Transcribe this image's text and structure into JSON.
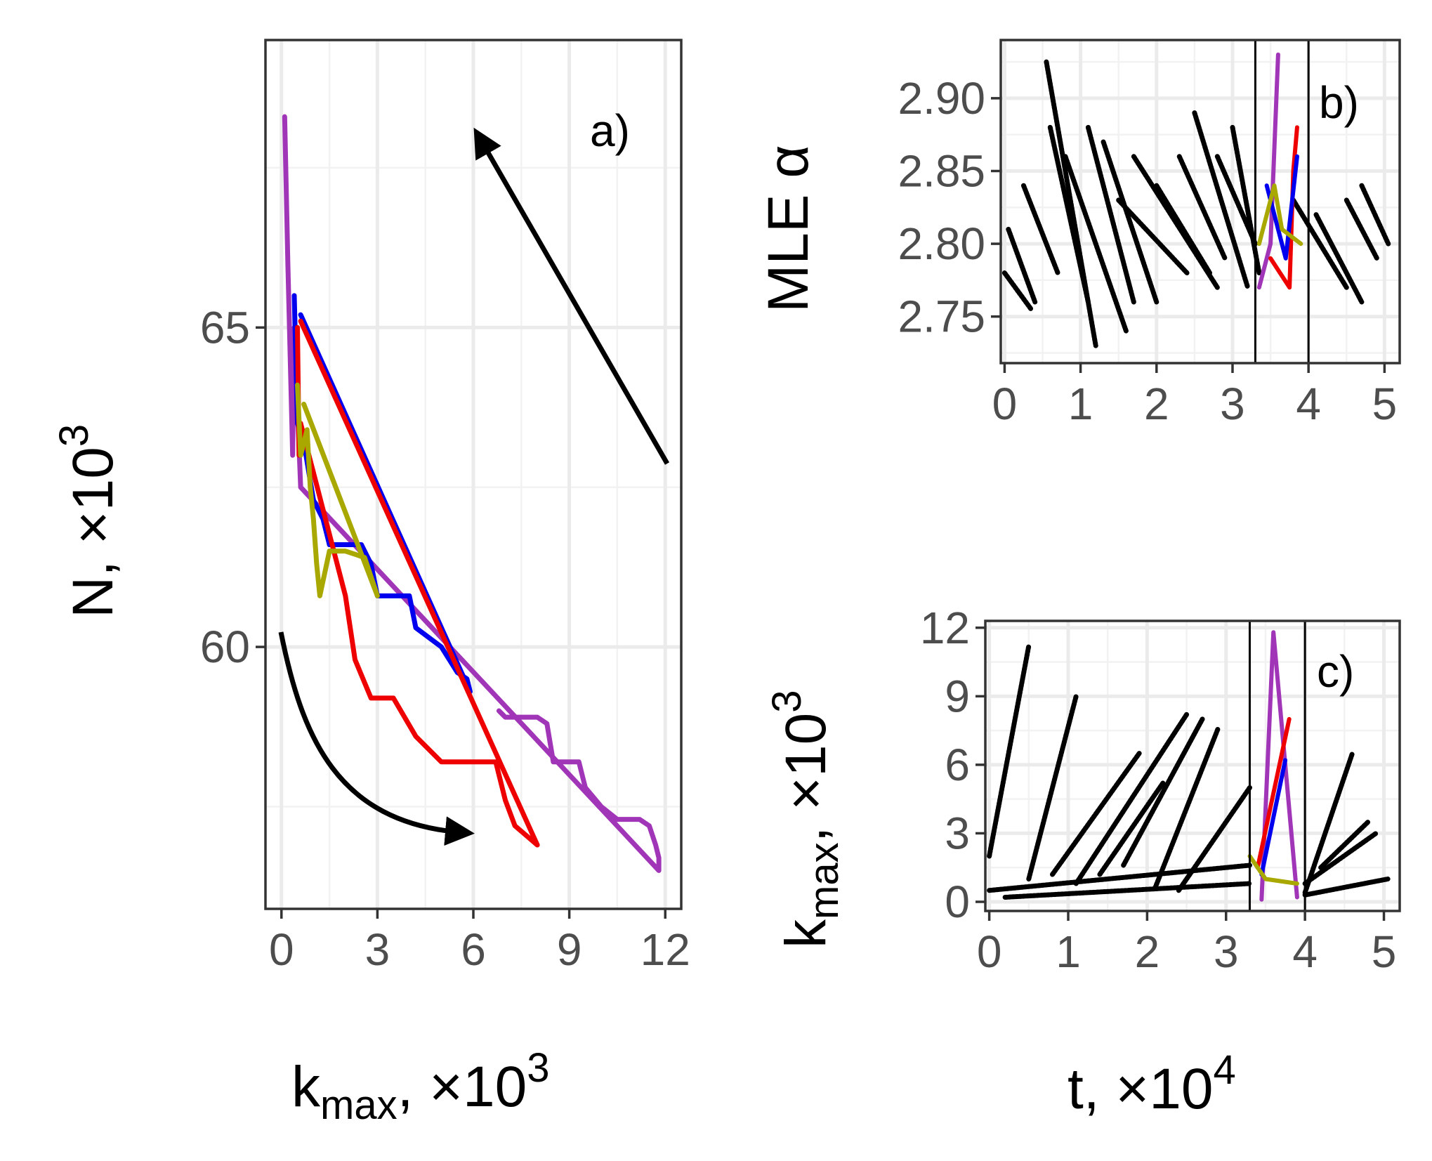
{
  "chart_data": [
    {
      "panel": "a)",
      "type": "line",
      "xlabel_main": "k",
      "xlabel_sub": "max",
      "xlabel_suffix": ", ×10",
      "xlabel_exp": "3",
      "ylabel_main": "N, ×10",
      "ylabel_exp": "3",
      "xlim": [
        -0.5,
        12.5
      ],
      "ylim": [
        55.9,
        69.5
      ],
      "xticks": [
        0,
        3,
        6,
        9,
        12
      ],
      "yticks": [
        60,
        65
      ],
      "series": [
        {
          "name": "purple",
          "color": "#a135b7",
          "x": [
            0.1,
            0.2,
            0.3,
            0.35,
            0.4,
            0.6,
            11.8,
            11.8,
            11.7,
            11.5,
            11.2,
            10.5,
            10.0,
            9.5,
            9.3,
            8.5,
            8.3,
            8.0,
            7.5,
            7.0,
            6.8
          ],
          "y": [
            68.3,
            66.0,
            64.0,
            63.0,
            65.0,
            62.5,
            56.5,
            56.7,
            56.9,
            57.2,
            57.3,
            57.3,
            57.5,
            57.8,
            58.2,
            58.2,
            58.8,
            58.9,
            58.9,
            58.9,
            59.0
          ]
        },
        {
          "name": "blue",
          "color": "#0000ee",
          "x": [
            0.4,
            0.5,
            0.7,
            1.0,
            1.3,
            1.5,
            1.8,
            2.5,
            2.8,
            3.0,
            4.0,
            4.2,
            5.0,
            5.5,
            5.8,
            5.9,
            0.6
          ],
          "y": [
            65.5,
            63.5,
            63.2,
            62.3,
            62.0,
            61.6,
            61.6,
            61.6,
            61.3,
            60.8,
            60.8,
            60.3,
            60.0,
            59.6,
            59.5,
            59.3,
            65.2
          ]
        },
        {
          "name": "red",
          "color": "#ee0000",
          "x": [
            0.5,
            0.55,
            0.6,
            2.0,
            2.3,
            2.8,
            3.5,
            4.2,
            5.0,
            6.7,
            7.0,
            7.3,
            8.0,
            0.6
          ],
          "y": [
            65.0,
            63.0,
            63.5,
            60.8,
            59.8,
            59.2,
            59.2,
            58.6,
            58.2,
            58.2,
            57.6,
            57.2,
            56.9,
            65.1
          ]
        },
        {
          "name": "olive",
          "color": "#a8a800",
          "x": [
            0.5,
            0.6,
            0.8,
            0.9,
            1.0,
            1.1,
            1.2,
            1.5,
            2.0,
            2.6,
            3.0,
            0.7
          ],
          "y": [
            64.1,
            63.0,
            63.4,
            62.5,
            62.0,
            61.3,
            60.8,
            61.5,
            61.5,
            61.4,
            60.8,
            63.8
          ]
        }
      ],
      "annotations": [
        "arrow-up-left",
        "arrow-curved-right"
      ]
    },
    {
      "panel": "b)",
      "type": "scatter",
      "ylabel": "MLE α",
      "xlim": [
        -0.05,
        5.2
      ],
      "ylim": [
        2.718,
        2.94
      ],
      "xticks": [
        0,
        1,
        2,
        3,
        4,
        5
      ],
      "yticks": [
        2.75,
        2.8,
        2.85,
        2.9
      ],
      "ytick_labels": [
        "2.75",
        "2.80",
        "2.85",
        "2.90"
      ],
      "vlines": [
        3.3,
        4.0
      ],
      "series": [
        {
          "name": "black",
          "color": "#000000",
          "segments": [
            [
              0.0,
              2.78,
              0.35,
              2.755
            ],
            [
              0.05,
              2.81,
              0.4,
              2.76
            ],
            [
              0.25,
              2.84,
              0.7,
              2.78
            ],
            [
              0.55,
              2.925,
              1.2,
              2.73
            ],
            [
              0.6,
              2.88,
              1.1,
              2.76
            ],
            [
              0.8,
              2.86,
              1.6,
              2.74
            ],
            [
              1.1,
              2.88,
              1.7,
              2.76
            ],
            [
              1.3,
              2.87,
              2.0,
              2.76
            ],
            [
              1.5,
              2.83,
              2.4,
              2.78
            ],
            [
              1.7,
              2.86,
              2.8,
              2.77
            ],
            [
              2.0,
              2.84,
              2.7,
              2.78
            ],
            [
              2.3,
              2.86,
              2.9,
              2.79
            ],
            [
              2.5,
              2.89,
              3.2,
              2.77
            ],
            [
              2.8,
              2.86,
              3.3,
              2.8
            ],
            [
              3.0,
              2.88,
              3.35,
              2.78
            ],
            [
              3.8,
              2.83,
              4.5,
              2.77
            ],
            [
              4.1,
              2.82,
              4.7,
              2.76
            ],
            [
              4.5,
              2.83,
              4.9,
              2.79
            ],
            [
              4.7,
              2.84,
              5.05,
              2.8
            ]
          ]
        },
        {
          "name": "purple",
          "color": "#a135b7",
          "x": [
            3.35,
            3.5,
            3.6
          ],
          "y": [
            2.77,
            2.8,
            2.93
          ]
        },
        {
          "name": "red",
          "color": "#ee0000",
          "x": [
            3.5,
            3.75,
            3.8,
            3.85
          ],
          "y": [
            2.79,
            2.77,
            2.85,
            2.88
          ]
        },
        {
          "name": "blue",
          "color": "#0000ee",
          "x": [
            3.45,
            3.7,
            3.85
          ],
          "y": [
            2.84,
            2.79,
            2.86
          ]
        },
        {
          "name": "olive",
          "color": "#a8a800",
          "x": [
            3.35,
            3.55,
            3.65,
            3.9
          ],
          "y": [
            2.8,
            2.84,
            2.81,
            2.8
          ]
        }
      ]
    },
    {
      "panel": "c)",
      "type": "scatter",
      "xlabel_main": "t, ×10",
      "xlabel_exp": "4",
      "ylabel_main": "k",
      "ylabel_sub": "max",
      "ylabel_suffix": ", ×10",
      "ylabel_exp": "3",
      "xlim": [
        -0.05,
        5.2
      ],
      "ylim": [
        -0.4,
        12.3
      ],
      "xticks": [
        0,
        1,
        2,
        3,
        4,
        5
      ],
      "yticks": [
        0,
        3,
        6,
        9,
        12
      ],
      "vlines": [
        3.3,
        4.0
      ],
      "series": [
        {
          "name": "black",
          "color": "#000000",
          "segments": [
            [
              0.0,
              2.0,
              0.5,
              11.2
            ],
            [
              0.0,
              0.5,
              3.3,
              1.6
            ],
            [
              0.2,
              0.2,
              3.3,
              0.8
            ],
            [
              0.5,
              1.0,
              1.1,
              9.0
            ],
            [
              0.8,
              1.2,
              1.9,
              6.5
            ],
            [
              1.1,
              0.8,
              2.5,
              8.2
            ],
            [
              1.4,
              1.2,
              2.2,
              5.2
            ],
            [
              1.7,
              1.6,
              2.7,
              8.0
            ],
            [
              2.1,
              0.6,
              2.9,
              7.6
            ],
            [
              2.4,
              0.5,
              3.3,
              5.0
            ],
            [
              4.0,
              0.4,
              4.6,
              6.5
            ],
            [
              4.0,
              0.8,
              4.9,
              3.0
            ],
            [
              4.2,
              1.5,
              4.8,
              3.5
            ],
            [
              4.0,
              0.3,
              5.05,
              1.0
            ]
          ]
        },
        {
          "name": "purple",
          "color": "#a135b7",
          "x": [
            3.45,
            3.6,
            3.9
          ],
          "y": [
            0.1,
            11.8,
            0.2
          ]
        },
        {
          "name": "red",
          "color": "#ee0000",
          "x": [
            3.4,
            3.8
          ],
          "y": [
            1.5,
            8.0
          ]
        },
        {
          "name": "blue",
          "color": "#0000ee",
          "x": [
            3.45,
            3.75
          ],
          "y": [
            1.2,
            6.2
          ]
        },
        {
          "name": "olive",
          "color": "#a8a800",
          "x": [
            3.3,
            3.5,
            3.9
          ],
          "y": [
            2.0,
            1.0,
            0.8
          ]
        }
      ]
    }
  ]
}
